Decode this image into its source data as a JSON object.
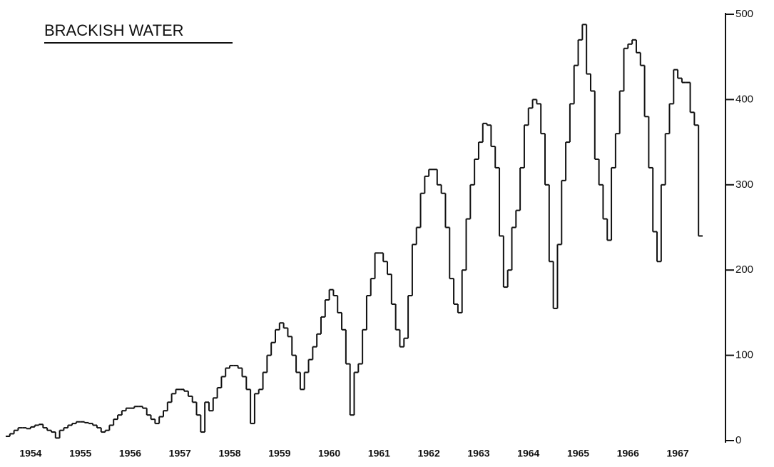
{
  "chart_data": {
    "type": "step",
    "title": "BRACKISH WATER",
    "categories": [
      null,
      null,
      null,
      null,
      null,
      null,
      "1954",
      null,
      null,
      null,
      null,
      null,
      null,
      null,
      null,
      null,
      null,
      null,
      "1955",
      null,
      null,
      null,
      null,
      null,
      null,
      null,
      null,
      null,
      null,
      null,
      "1956",
      null,
      null,
      null,
      null,
      null,
      null,
      null,
      null,
      null,
      null,
      null,
      "1957",
      null,
      null,
      null,
      null,
      null,
      null,
      null,
      null,
      null,
      null,
      null,
      "1958",
      null,
      null,
      null,
      null,
      null,
      null,
      null,
      null,
      null,
      null,
      null,
      "1959",
      null,
      null,
      null,
      null,
      null,
      null,
      null,
      null,
      null,
      null,
      null,
      "1960",
      null,
      null,
      null,
      null,
      null,
      null,
      null,
      null,
      null,
      null,
      null,
      "1961",
      null,
      null,
      null,
      null,
      null,
      null,
      null,
      null,
      null,
      null,
      null,
      "1962",
      null,
      null,
      null,
      null,
      null,
      null,
      null,
      null,
      null,
      null,
      null,
      "1963",
      null,
      null,
      null,
      null,
      null,
      null,
      null,
      null,
      null,
      null,
      null,
      "1964",
      null,
      null,
      null,
      null,
      null,
      null,
      null,
      null,
      null,
      null,
      null,
      "1965",
      null,
      null,
      null,
      null,
      null,
      null,
      null,
      null,
      null,
      null,
      null,
      "1966",
      null,
      null,
      null,
      null,
      null,
      null,
      null,
      null,
      null,
      null,
      null,
      "1967",
      null,
      null,
      null,
      null,
      null
    ],
    "values": [
      5,
      8,
      12,
      15,
      15,
      14,
      16,
      18,
      19,
      15,
      12,
      10,
      3,
      12,
      15,
      18,
      20,
      22,
      22,
      21,
      20,
      18,
      15,
      10,
      12,
      18,
      25,
      30,
      35,
      38,
      38,
      40,
      40,
      38,
      30,
      25,
      20,
      28,
      35,
      45,
      55,
      60,
      60,
      58,
      52,
      45,
      30,
      10,
      45,
      35,
      50,
      62,
      75,
      85,
      88,
      88,
      85,
      75,
      60,
      20,
      55,
      60,
      80,
      100,
      115,
      130,
      138,
      132,
      122,
      100,
      80,
      60,
      80,
      95,
      110,
      125,
      145,
      165,
      177,
      170,
      150,
      130,
      90,
      30,
      80,
      90,
      130,
      170,
      190,
      220,
      220,
      210,
      195,
      160,
      130,
      110,
      120,
      170,
      230,
      250,
      290,
      310,
      318,
      318,
      300,
      290,
      250,
      190,
      160,
      150,
      200,
      260,
      300,
      330,
      350,
      372,
      370,
      345,
      320,
      240,
      180,
      200,
      250,
      270,
      320,
      370,
      390,
      400,
      395,
      360,
      300,
      210,
      155,
      230,
      305,
      350,
      395,
      440,
      470,
      488,
      430,
      410,
      330,
      300,
      260,
      235,
      320,
      360,
      410,
      460,
      465,
      470,
      455,
      440,
      380,
      320,
      245,
      210,
      300,
      360,
      395,
      435,
      425,
      420,
      420,
      385,
      370,
      240
    ],
    "color": "#111111",
    "ylim": [
      0,
      500
    ],
    "yticks": [
      0,
      100,
      200,
      300,
      400,
      500
    ]
  }
}
